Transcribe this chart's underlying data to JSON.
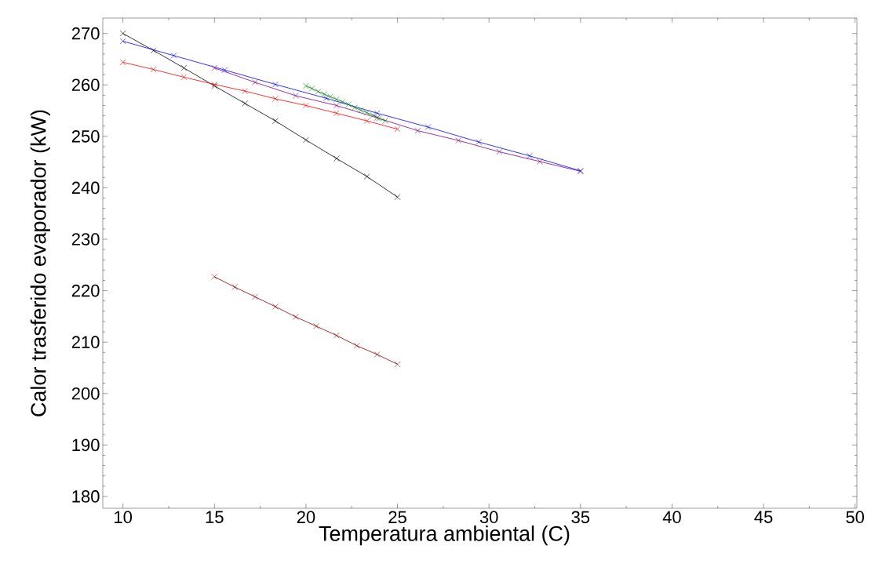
{
  "chart_data": {
    "type": "line",
    "xlabel": "Temperatura ambiental (C)",
    "ylabel": "Calor trasferido evaporador (kW)",
    "xlim": [
      8.9,
      50.1
    ],
    "ylim": [
      177.7,
      273
    ],
    "xticks": [
      10,
      15,
      20,
      25,
      30,
      35,
      40,
      45,
      50
    ],
    "yticks": [
      180,
      190,
      200,
      210,
      220,
      230,
      240,
      250,
      260,
      270
    ],
    "marker": "cross",
    "line_style": "solid",
    "series": [
      {
        "color": "#000000",
        "x": [
          10,
          11.67,
          13.33,
          15,
          16.67,
          18.33,
          20,
          21.67,
          23.33,
          25
        ],
        "values": [
          270.0,
          266.7,
          263.3,
          259.8,
          256.4,
          253.0,
          249.3,
          245.7,
          242.2,
          238.2
        ]
      },
      {
        "color": "#ff0000",
        "x": [
          10,
          11.67,
          13.33,
          15,
          16.67,
          18.33,
          20,
          21.67,
          23.33,
          25
        ],
        "values": [
          264.4,
          263.0,
          261.5,
          260.1,
          258.8,
          257.3,
          256.0,
          254.5,
          253.0,
          251.4
        ]
      },
      {
        "color": "#800080",
        "x": [
          15,
          17.22,
          19.44,
          21.67,
          23.89,
          26.11,
          28.33,
          30.56,
          32.78,
          35
        ],
        "values": [
          263.3,
          260.5,
          257.9,
          256.0,
          253.6,
          251.1,
          249.2,
          247.0,
          245.1,
          243.2
        ]
      },
      {
        "color": "#0000ff",
        "x": [
          10,
          12.78,
          15.56,
          18.33,
          21.11,
          23.89,
          26.67,
          29.44,
          32.22,
          35
        ],
        "values": [
          268.5,
          265.7,
          262.9,
          260.1,
          257.4,
          254.5,
          251.8,
          248.9,
          246.2,
          243.3
        ]
      },
      {
        "color": "#008000",
        "x": [
          20,
          20.33,
          20.67,
          21,
          21.33,
          21.67,
          22,
          22.33,
          22.67,
          23,
          23.33,
          23.67,
          24,
          24.33
        ],
        "values": [
          259.8,
          259.3,
          258.7,
          258.2,
          257.7,
          257.2,
          256.7,
          256.2,
          255.6,
          255.1,
          254.6,
          254.1,
          253.5,
          253.0
        ]
      },
      {
        "color": "#8b0000",
        "x": [
          15,
          16.11,
          17.22,
          18.33,
          19.44,
          20.56,
          21.67,
          22.78,
          23.89,
          25
        ],
        "values": [
          222.7,
          220.7,
          218.8,
          216.9,
          214.9,
          213.1,
          211.3,
          209.3,
          207.6,
          205.7
        ]
      }
    ]
  }
}
